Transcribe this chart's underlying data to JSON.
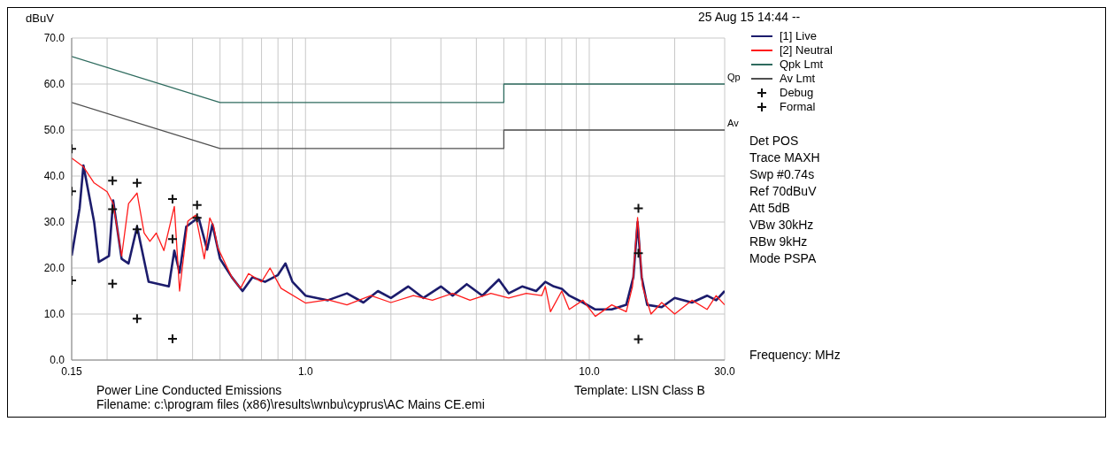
{
  "chart_data": {
    "type": "line",
    "ylabel": "dBuV",
    "xlabel": "Frequency: MHz",
    "log": "x",
    "grid": true,
    "legend": "right",
    "xlim": [
      0.15,
      30
    ],
    "ylim": [
      0,
      70
    ],
    "xticks": [
      {
        "value": 0.15,
        "label": "0.15"
      },
      {
        "value": 0.2,
        "label": null
      },
      {
        "value": 0.3,
        "label": null
      },
      {
        "value": 0.4,
        "label": null
      },
      {
        "value": 0.5,
        "label": null
      },
      {
        "value": 0.6,
        "label": null
      },
      {
        "value": 0.7,
        "label": null
      },
      {
        "value": 0.8,
        "label": null
      },
      {
        "value": 0.9,
        "label": null
      },
      {
        "value": 1,
        "label": "1.0"
      },
      {
        "value": 2,
        "label": null
      },
      {
        "value": 3,
        "label": null
      },
      {
        "value": 4,
        "label": null
      },
      {
        "value": 5,
        "label": null
      },
      {
        "value": 6,
        "label": null
      },
      {
        "value": 7,
        "label": null
      },
      {
        "value": 8,
        "label": null
      },
      {
        "value": 9,
        "label": null
      },
      {
        "value": 10,
        "label": "10.0"
      },
      {
        "value": 20,
        "label": null
      },
      {
        "value": 30,
        "label": "30.0"
      }
    ],
    "yticks": [
      {
        "value": 0,
        "label": "0.0"
      },
      {
        "value": 10,
        "label": "10.0"
      },
      {
        "value": 20,
        "label": "20.0"
      },
      {
        "value": 30,
        "label": "30.0"
      },
      {
        "value": 40,
        "label": "40.0"
      },
      {
        "value": 50,
        "label": "50.0"
      },
      {
        "value": 60,
        "label": "60.0"
      },
      {
        "value": 70,
        "label": "70.0"
      }
    ],
    "series": [
      {
        "name": "[1] Live",
        "color": "#1c1c6c",
        "x": [
          0.15,
          0.16,
          0.165,
          0.18,
          0.187,
          0.203,
          0.21,
          0.225,
          0.238,
          0.255,
          0.28,
          0.33,
          0.345,
          0.36,
          0.38,
          0.42,
          0.45,
          0.47,
          0.5,
          0.55,
          0.6,
          0.65,
          0.72,
          0.8,
          0.85,
          0.9,
          1.0,
          1.2,
          1.4,
          1.6,
          1.8,
          2.0,
          2.3,
          2.6,
          3.0,
          3.3,
          3.7,
          4.2,
          4.8,
          5.2,
          5.8,
          6.5,
          7.0,
          7.5,
          8.0,
          8.5,
          9.5,
          10.5,
          12,
          13.5,
          14.3,
          14.8,
          15.3,
          16,
          18,
          20,
          23,
          26,
          28,
          30
        ],
        "values": [
          22.7,
          33,
          42.3,
          30,
          21.3,
          22.6,
          34.7,
          22,
          21,
          29,
          17,
          16,
          23.8,
          19,
          29,
          31,
          24,
          29.5,
          22,
          18,
          15,
          18,
          17,
          18.5,
          21,
          17,
          14,
          13,
          14.5,
          12.5,
          15,
          13.5,
          16,
          13.5,
          16,
          14,
          16.5,
          14,
          17.5,
          14.5,
          16,
          15,
          17,
          16,
          15.5,
          14,
          12.5,
          11,
          11,
          12,
          18,
          30,
          18,
          12,
          11.5,
          13.5,
          12.5,
          14,
          13,
          15
        ]
      },
      {
        "name": "[2] Neutral",
        "color": "#ff1a1a",
        "x": [
          0.15,
          0.165,
          0.18,
          0.2,
          0.21,
          0.225,
          0.238,
          0.255,
          0.27,
          0.283,
          0.298,
          0.317,
          0.345,
          0.36,
          0.385,
          0.41,
          0.44,
          0.46,
          0.475,
          0.49,
          0.55,
          0.59,
          0.63,
          0.7,
          0.75,
          0.82,
          1.0,
          1.2,
          1.4,
          1.7,
          2.0,
          2.4,
          2.8,
          3.3,
          3.8,
          4.5,
          5.2,
          6,
          6.8,
          7.0,
          7.3,
          8,
          8.5,
          9.5,
          10.5,
          12,
          13.5,
          14.2,
          14.8,
          15.4,
          16.5,
          18,
          20,
          23,
          26,
          28,
          30
        ],
        "values": [
          43.9,
          42,
          38.5,
          36.6,
          34,
          22.6,
          34,
          36.3,
          27.6,
          25.8,
          27.6,
          23.8,
          33.4,
          15,
          30.2,
          31.5,
          22,
          30.9,
          29,
          24.5,
          18,
          15.6,
          18.8,
          17,
          20,
          15.6,
          12.4,
          13.1,
          12,
          14,
          12.5,
          14,
          13,
          14.5,
          13,
          14.5,
          13.5,
          14.5,
          14,
          16,
          10.5,
          15,
          11,
          13,
          9.5,
          12,
          10.5,
          16,
          31,
          16,
          10,
          12.5,
          10,
          13,
          11,
          14,
          12
        ]
      },
      {
        "name": "Qpk Lmt",
        "color": "#2e6b5e",
        "x": [
          0.15,
          0.5,
          5,
          5,
          30
        ],
        "values": [
          66,
          56,
          56,
          60,
          60
        ]
      },
      {
        "name": "Av Lmt",
        "color": "#505050",
        "x": [
          0.15,
          0.5,
          5,
          5,
          30
        ],
        "values": [
          56,
          46,
          46,
          50,
          50
        ]
      },
      {
        "name": "Debug",
        "type": "scatter",
        "marker": "cross",
        "color": "#111111",
        "x": [
          0.15,
          0.209,
          0.255,
          0.34,
          0.415,
          14.9
        ],
        "values": [
          45.9,
          39,
          38.5,
          35,
          33.7,
          33
        ]
      },
      {
        "name": "Formal",
        "type": "scatter",
        "marker": "cross",
        "color": "#111111",
        "x": [
          0.15,
          0.209,
          0.255,
          0.34,
          0.415,
          14.9,
          0.15,
          0.209,
          0.255,
          0.34,
          14.9
        ],
        "values": [
          36.7,
          32.8,
          28.4,
          26.3,
          30.9,
          23.2,
          17.3,
          16.6,
          9,
          4.6,
          4.5
        ]
      }
    ],
    "annotations": [
      "25 Aug 15 14:44 --",
      "Det POS",
      "Trace MAXH",
      "Swp #0.74s",
      "Ref 70dBuV",
      "Att 5dB",
      "VBw 30kHz",
      "RBw 9kHz",
      "Mode PSPA",
      "Power Line Conducted Emissions",
      "Template: LISN Class B",
      "Filename: c:\\program files (x86)\\results\\wnbu\\cyprus\\AC Mains CE.emi",
      {
        "text": "Qp",
        "x": 30,
        "y": 60
      },
      {
        "text": "Av",
        "x": 30,
        "y": 50
      }
    ]
  }
}
